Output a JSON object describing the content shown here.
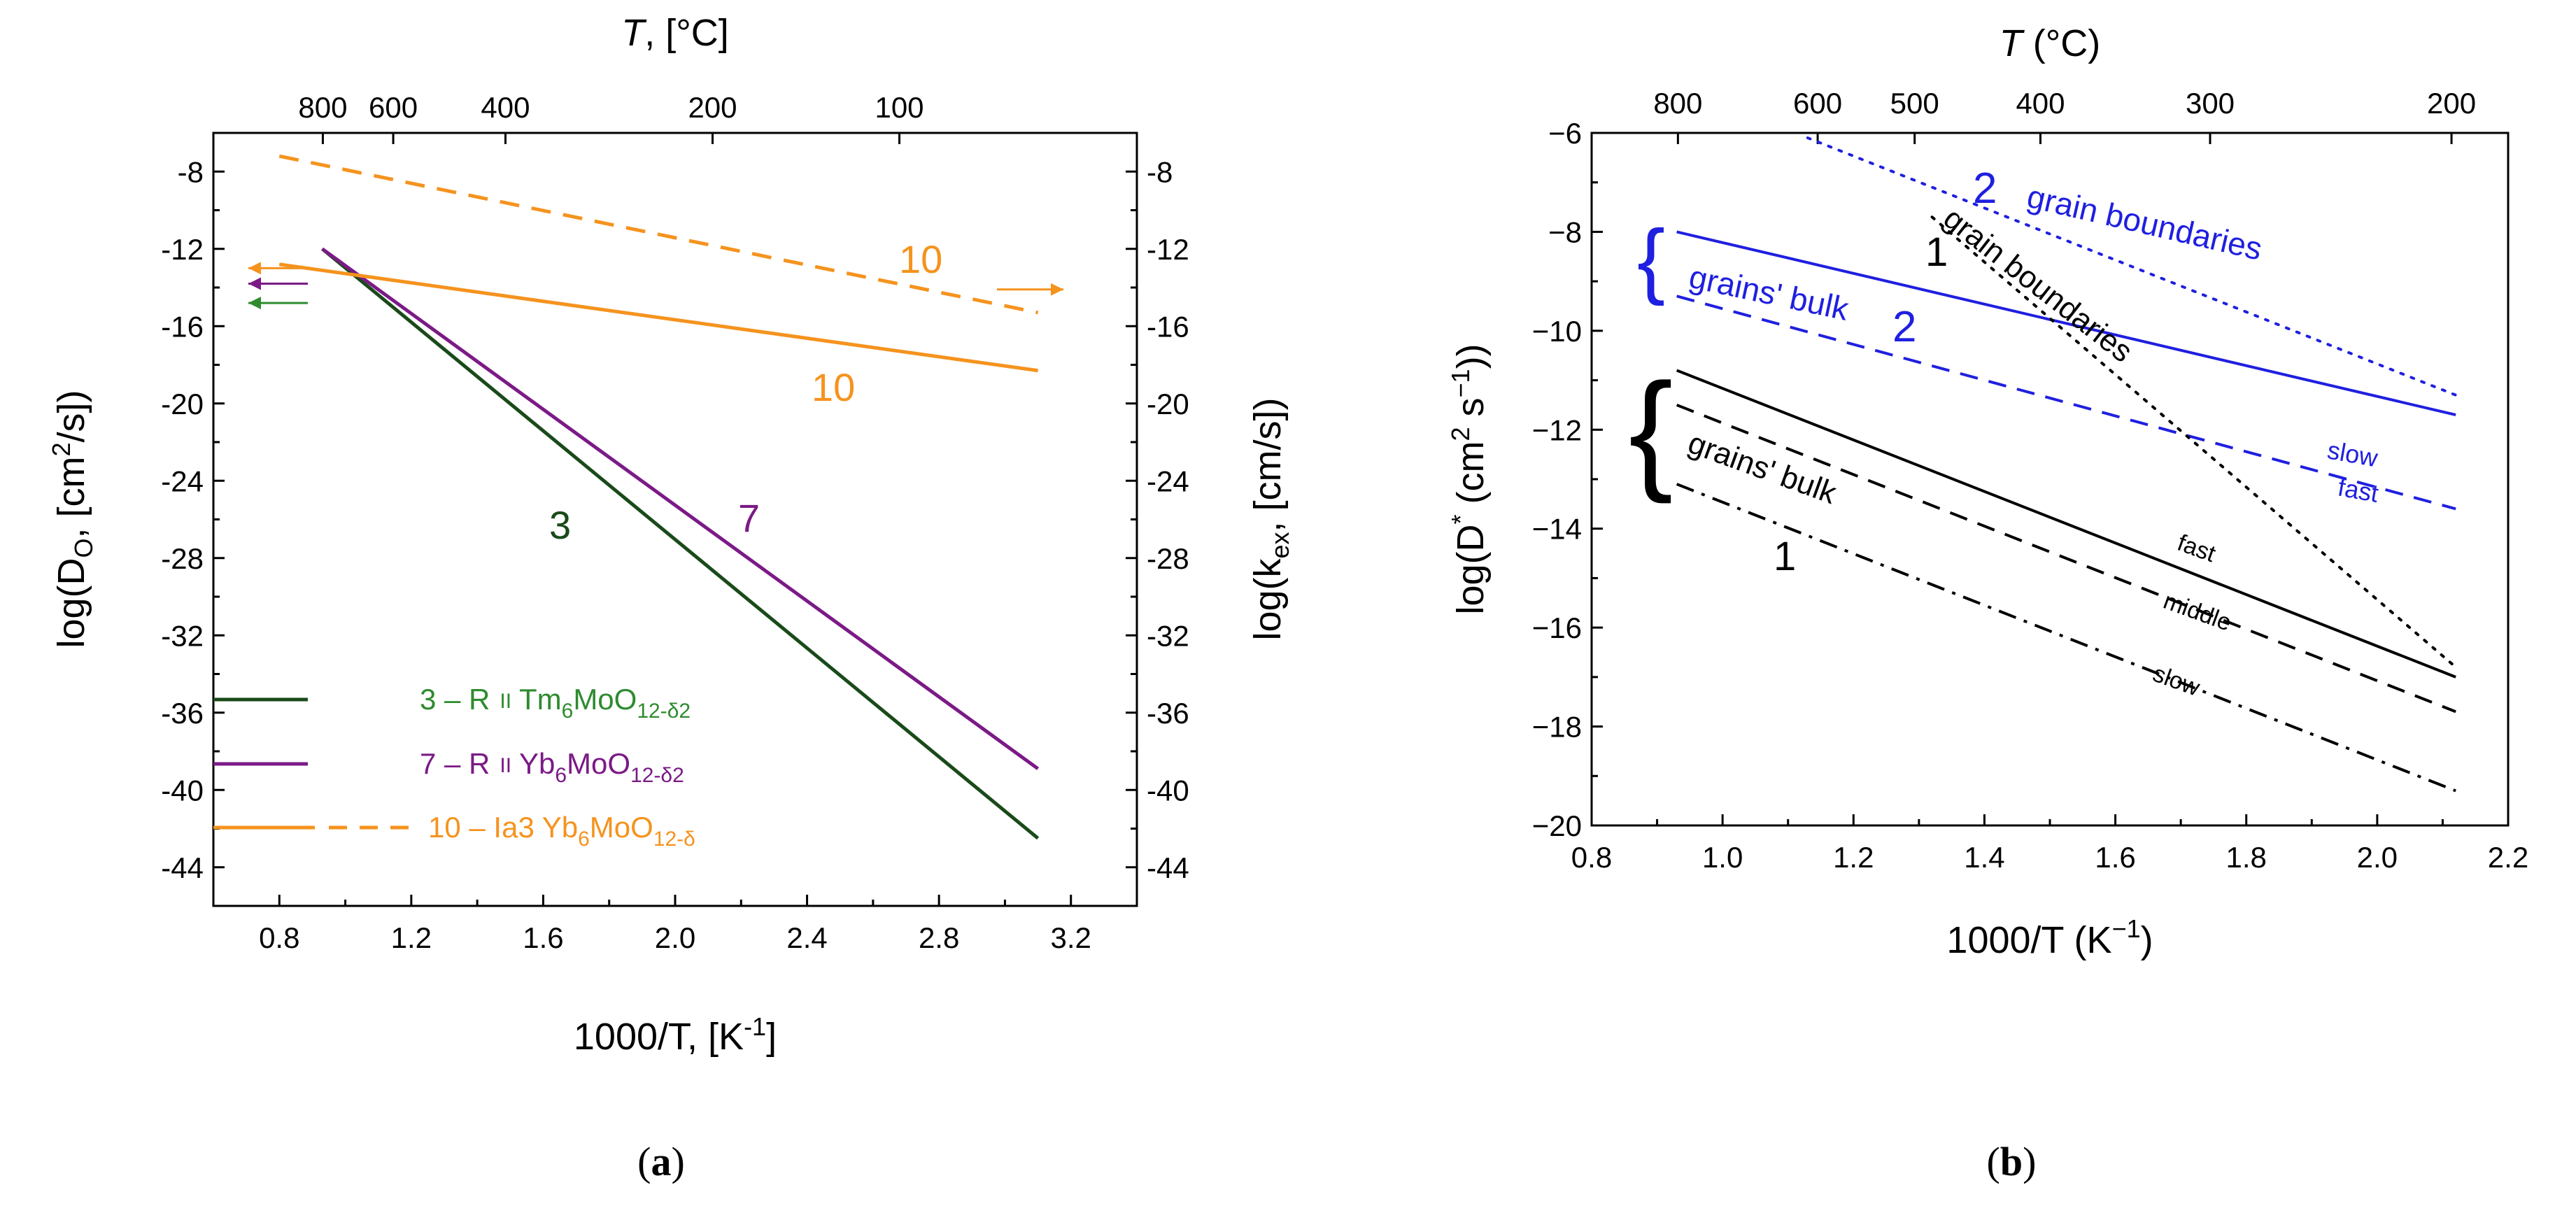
{
  "captions": {
    "a": "a",
    "b": "b"
  },
  "chart_data": [
    {
      "panel": "a",
      "type": "line",
      "xlabel": "1000/T, [K",
      "xlabel_sup": "-1",
      "xlabel_end": "]",
      "ylabel_left": "log(D",
      "ylabel_left_sub": "O",
      "ylabel_left_mid": ", [cm",
      "ylabel_left_sup": "2",
      "ylabel_left_end": "/s])",
      "ylabel_right": "log(k",
      "ylabel_right_sub": "ex",
      "ylabel_right_end": ", [cm/s])",
      "top_label": "T",
      "top_label_end": ", [°C]",
      "xlim": [
        0.6,
        3.4
      ],
      "ylim": [
        -46,
        -6
      ],
      "x_ticks": [
        "0.8",
        "1.2",
        "1.6",
        "2.0",
        "2.4",
        "2.8",
        "3.2"
      ],
      "y_ticks": [
        "-8",
        "-12",
        "-16",
        "-20",
        "-24",
        "-28",
        "-32",
        "-36",
        "-40",
        "-44"
      ],
      "top_ticks": [
        "800",
        "600",
        "400",
        "200",
        "100"
      ],
      "series": [
        {
          "id": "3",
          "name_pre": "3 – R",
          "name_post": " Tm",
          "sub1": "6",
          "mid": "MoO",
          "sub2": "12-δ2",
          "label": "3",
          "color": "#1a4a1a",
          "dash": "solid",
          "x": [
            0.93,
            3.1
          ],
          "y": [
            -12,
            -42.5
          ]
        },
        {
          "id": "7",
          "name_pre": "7 – R",
          "name_post": " Yb",
          "sub1": "6",
          "mid": "MoO",
          "sub2": "12-δ2",
          "label": "7",
          "color": "#7b1a86",
          "dash": "solid",
          "x": [
            0.93,
            3.1
          ],
          "y": [
            -12,
            -38.9
          ]
        },
        {
          "id": "10",
          "name_pre": "10 – Ia3",
          "name_post": " Yb",
          "sub1": "6",
          "mid": "MoO",
          "sub2": "12-δ",
          "label": "10",
          "color": "#f5931e",
          "dash": "solid",
          "x": [
            0.8,
            3.1
          ],
          "y": [
            -12.8,
            -18.3
          ]
        },
        {
          "id": "10-kex",
          "name_pre": "",
          "label": "10",
          "color": "#f5931e",
          "dash": "dashed",
          "x": [
            0.8,
            3.1
          ],
          "y": [
            -7.2,
            -15.3
          ]
        }
      ],
      "arrows": [
        {
          "dir": "left",
          "color": "#f5931e",
          "y": -13.0
        },
        {
          "dir": "left",
          "color": "#7b1a86",
          "y": -13.8
        },
        {
          "dir": "left",
          "color": "#2e8b2e",
          "y": -14.8
        },
        {
          "dir": "right",
          "color": "#f5931e",
          "y": -14.1
        }
      ]
    },
    {
      "panel": "b",
      "type": "line",
      "xlabel": "1000/T (K",
      "xlabel_sup": "−1",
      "xlabel_end": ")",
      "ylabel": "log(D",
      "ylabel_sup": "*",
      "ylabel_mid": " (cm",
      "ylabel_sup2": "2",
      "ylabel_mid2": " s",
      "ylabel_sup3": "−1",
      "ylabel_end": "))",
      "top_label": "T",
      "top_label_end": " (°C)",
      "xlim": [
        0.8,
        2.2
      ],
      "ylim": [
        -20,
        -6
      ],
      "x_ticks": [
        "0.8",
        "1.0",
        "1.2",
        "1.4",
        "1.6",
        "1.8",
        "2.0",
        "2.2"
      ],
      "y_ticks": [
        "−6",
        "−8",
        "−10",
        "−12",
        "−14",
        "−16",
        "−18",
        "−20"
      ],
      "top_ticks": [
        "800",
        "600",
        "500",
        "400",
        "300",
        "200"
      ],
      "series": [
        {
          "name": "2 grain boundaries",
          "color": "#1f1fe0",
          "dash": "dotted",
          "x": [
            1.13,
            2.12
          ],
          "y": [
            -6.1,
            -11.3
          ]
        },
        {
          "name": "2 grains' bulk fast",
          "color": "#1f1fe0",
          "dash": "solid",
          "x": [
            0.93,
            2.12
          ],
          "y": [
            -8.0,
            -11.7
          ]
        },
        {
          "name": "2 grains' bulk slow",
          "color": "#1f1fe0",
          "dash": "dashed",
          "x": [
            0.93,
            2.12
          ],
          "y": [
            -9.3,
            -13.6
          ]
        },
        {
          "name": "1 grain boundaries",
          "color": "#000000",
          "dash": "dotted",
          "x": [
            1.32,
            2.12
          ],
          "y": [
            -7.7,
            -16.8
          ]
        },
        {
          "name": "1 grains' bulk fast",
          "color": "#000000",
          "dash": "solid",
          "x": [
            0.93,
            2.12
          ],
          "y": [
            -10.8,
            -17.0
          ]
        },
        {
          "name": "1 grains' bulk middle",
          "color": "#000000",
          "dash": "dashed",
          "x": [
            0.93,
            2.12
          ],
          "y": [
            -11.5,
            -17.7
          ]
        },
        {
          "name": "1 grains' bulk slow",
          "color": "#000000",
          "dash": "dashdot",
          "x": [
            0.93,
            2.12
          ],
          "y": [
            -13.1,
            -19.3
          ]
        }
      ],
      "annotations": {
        "blue_two_top": "2",
        "blue_gb": "grain boundaries",
        "blue_bulk": "grains' bulk",
        "blue_two_bulk": "2",
        "blue_fast": "fast",
        "blue_slow": "slow",
        "black_one_top": "1",
        "black_gb": "grain boundaries",
        "black_bulk": "grains' bulk",
        "black_one_bulk": "1",
        "black_fast": "fast",
        "black_middle": "middle",
        "black_slow": "slow"
      }
    }
  ]
}
